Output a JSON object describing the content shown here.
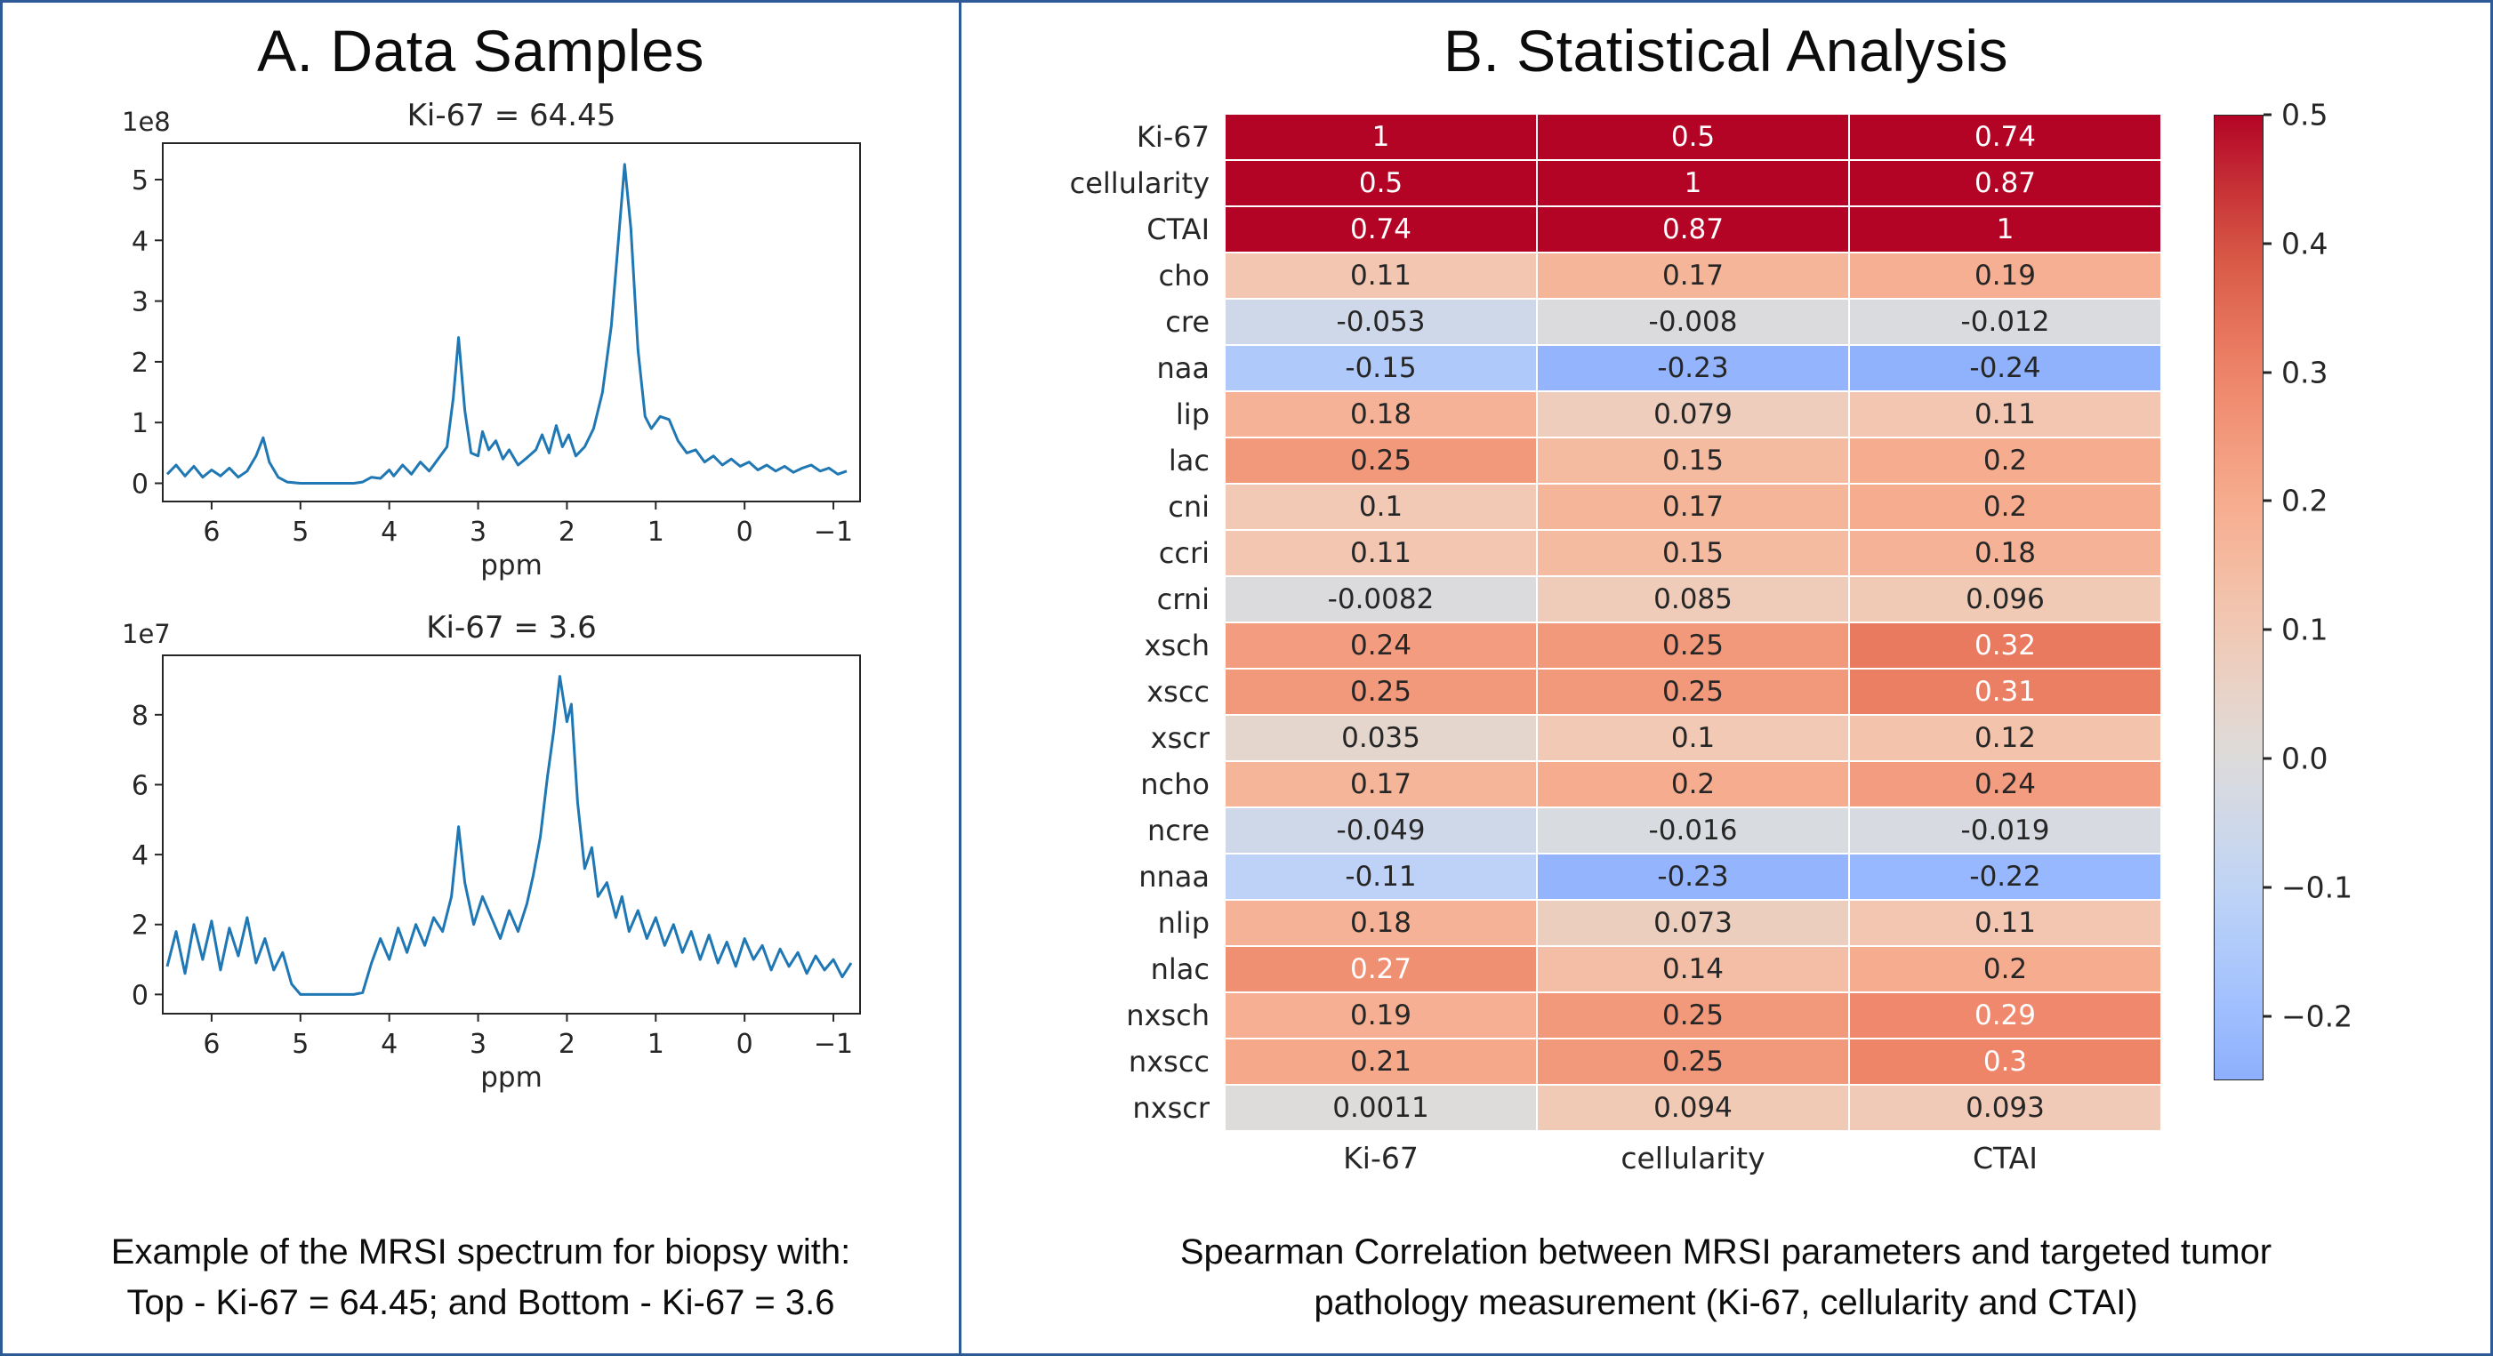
{
  "figure": {
    "border_color": "#2E5B97",
    "panels": {
      "a": {
        "title": "A. Data Samples",
        "caption": [
          "Example of the MRSI spectrum for biopsy with:",
          "Top - Ki-67 = 64.45; and Bottom - Ki-67 = 3.6"
        ]
      },
      "b": {
        "title": "B. Statistical Analysis",
        "caption": [
          "Spearman Correlation between MRSI parameters and targeted tumor",
          "pathology measurement (Ki-67, cellularity and CTAI)"
        ]
      }
    }
  },
  "chart_data": [
    {
      "type": "line",
      "id": "spectrum_top",
      "title": "Ki-67 = 64.45",
      "xlabel": "ppm",
      "y_offset_label": "1e8",
      "line_color": "#1f77b4",
      "xlim": [
        6.55,
        -1.3
      ],
      "ylim": [
        -0.3,
        5.6
      ],
      "x_tick_values": [
        6,
        5,
        4,
        3,
        2,
        1,
        0,
        -1
      ],
      "x_tick_labels": [
        "6",
        "5",
        "4",
        "3",
        "2",
        "1",
        "0",
        "−1"
      ],
      "y_tick_values": [
        0,
        1,
        2,
        3,
        4,
        5
      ],
      "y_tick_labels": [
        "0",
        "1",
        "2",
        "3",
        "4",
        "5"
      ],
      "points": [
        [
          6.5,
          0.15
        ],
        [
          6.4,
          0.3
        ],
        [
          6.3,
          0.12
        ],
        [
          6.2,
          0.28
        ],
        [
          6.1,
          0.1
        ],
        [
          6.0,
          0.22
        ],
        [
          5.9,
          0.12
        ],
        [
          5.8,
          0.25
        ],
        [
          5.7,
          0.1
        ],
        [
          5.6,
          0.2
        ],
        [
          5.5,
          0.45
        ],
        [
          5.42,
          0.75
        ],
        [
          5.35,
          0.35
        ],
        [
          5.25,
          0.1
        ],
        [
          5.15,
          0.02
        ],
        [
          5.0,
          0.0
        ],
        [
          4.8,
          0.0
        ],
        [
          4.6,
          0.0
        ],
        [
          4.4,
          0.0
        ],
        [
          4.3,
          0.02
        ],
        [
          4.2,
          0.1
        ],
        [
          4.1,
          0.08
        ],
        [
          4.0,
          0.22
        ],
        [
          3.95,
          0.12
        ],
        [
          3.85,
          0.3
        ],
        [
          3.75,
          0.15
        ],
        [
          3.65,
          0.35
        ],
        [
          3.55,
          0.2
        ],
        [
          3.45,
          0.4
        ],
        [
          3.35,
          0.6
        ],
        [
          3.28,
          1.4
        ],
        [
          3.22,
          2.4
        ],
        [
          3.15,
          1.2
        ],
        [
          3.08,
          0.5
        ],
        [
          3.0,
          0.45
        ],
        [
          2.95,
          0.85
        ],
        [
          2.88,
          0.55
        ],
        [
          2.8,
          0.7
        ],
        [
          2.72,
          0.4
        ],
        [
          2.65,
          0.55
        ],
        [
          2.55,
          0.3
        ],
        [
          2.45,
          0.42
        ],
        [
          2.35,
          0.55
        ],
        [
          2.28,
          0.8
        ],
        [
          2.2,
          0.5
        ],
        [
          2.12,
          0.95
        ],
        [
          2.05,
          0.6
        ],
        [
          1.98,
          0.8
        ],
        [
          1.9,
          0.45
        ],
        [
          1.8,
          0.6
        ],
        [
          1.7,
          0.9
        ],
        [
          1.6,
          1.5
        ],
        [
          1.5,
          2.6
        ],
        [
          1.42,
          4.0
        ],
        [
          1.35,
          5.25
        ],
        [
          1.28,
          4.2
        ],
        [
          1.2,
          2.2
        ],
        [
          1.12,
          1.1
        ],
        [
          1.05,
          0.9
        ],
        [
          0.95,
          1.1
        ],
        [
          0.85,
          1.05
        ],
        [
          0.75,
          0.7
        ],
        [
          0.65,
          0.5
        ],
        [
          0.55,
          0.55
        ],
        [
          0.45,
          0.35
        ],
        [
          0.35,
          0.45
        ],
        [
          0.25,
          0.3
        ],
        [
          0.15,
          0.4
        ],
        [
          0.05,
          0.28
        ],
        [
          -0.05,
          0.35
        ],
        [
          -0.15,
          0.22
        ],
        [
          -0.25,
          0.3
        ],
        [
          -0.35,
          0.2
        ],
        [
          -0.45,
          0.28
        ],
        [
          -0.55,
          0.18
        ],
        [
          -0.65,
          0.25
        ],
        [
          -0.75,
          0.3
        ],
        [
          -0.85,
          0.2
        ],
        [
          -0.95,
          0.25
        ],
        [
          -1.05,
          0.15
        ],
        [
          -1.15,
          0.2
        ]
      ]
    },
    {
      "type": "line",
      "id": "spectrum_bottom",
      "title": "Ki-67 = 3.6",
      "xlabel": "ppm",
      "y_offset_label": "1e7",
      "line_color": "#1f77b4",
      "xlim": [
        6.55,
        -1.3
      ],
      "ylim": [
        -0.55,
        9.7
      ],
      "x_tick_values": [
        6,
        5,
        4,
        3,
        2,
        1,
        0,
        -1
      ],
      "x_tick_labels": [
        "6",
        "5",
        "4",
        "3",
        "2",
        "1",
        "0",
        "−1"
      ],
      "y_tick_values": [
        0,
        2,
        4,
        6,
        8
      ],
      "y_tick_labels": [
        "0",
        "2",
        "4",
        "6",
        "8"
      ],
      "points": [
        [
          6.5,
          0.8
        ],
        [
          6.4,
          1.8
        ],
        [
          6.3,
          0.6
        ],
        [
          6.2,
          2.0
        ],
        [
          6.1,
          1.0
        ],
        [
          6.0,
          2.1
        ],
        [
          5.9,
          0.7
        ],
        [
          5.8,
          1.9
        ],
        [
          5.7,
          1.1
        ],
        [
          5.6,
          2.2
        ],
        [
          5.5,
          0.9
        ],
        [
          5.4,
          1.6
        ],
        [
          5.3,
          0.7
        ],
        [
          5.2,
          1.2
        ],
        [
          5.1,
          0.3
        ],
        [
          5.0,
          0.0
        ],
        [
          4.8,
          0.0
        ],
        [
          4.6,
          0.0
        ],
        [
          4.4,
          0.0
        ],
        [
          4.3,
          0.05
        ],
        [
          4.2,
          0.9
        ],
        [
          4.1,
          1.6
        ],
        [
          4.0,
          1.0
        ],
        [
          3.9,
          1.9
        ],
        [
          3.8,
          1.2
        ],
        [
          3.7,
          2.0
        ],
        [
          3.6,
          1.4
        ],
        [
          3.5,
          2.2
        ],
        [
          3.4,
          1.8
        ],
        [
          3.3,
          2.8
        ],
        [
          3.22,
          4.8
        ],
        [
          3.15,
          3.2
        ],
        [
          3.05,
          2.0
        ],
        [
          2.95,
          2.8
        ],
        [
          2.85,
          2.2
        ],
        [
          2.75,
          1.6
        ],
        [
          2.65,
          2.4
        ],
        [
          2.55,
          1.8
        ],
        [
          2.45,
          2.6
        ],
        [
          2.38,
          3.4
        ],
        [
          2.3,
          4.5
        ],
        [
          2.22,
          6.2
        ],
        [
          2.15,
          7.5
        ],
        [
          2.08,
          9.1
        ],
        [
          2.0,
          7.8
        ],
        [
          1.95,
          8.3
        ],
        [
          1.88,
          5.5
        ],
        [
          1.8,
          3.6
        ],
        [
          1.72,
          4.2
        ],
        [
          1.65,
          2.8
        ],
        [
          1.55,
          3.2
        ],
        [
          1.45,
          2.2
        ],
        [
          1.38,
          2.8
        ],
        [
          1.3,
          1.8
        ],
        [
          1.2,
          2.4
        ],
        [
          1.1,
          1.6
        ],
        [
          1.0,
          2.2
        ],
        [
          0.9,
          1.4
        ],
        [
          0.8,
          2.0
        ],
        [
          0.7,
          1.2
        ],
        [
          0.6,
          1.8
        ],
        [
          0.5,
          1.0
        ],
        [
          0.4,
          1.7
        ],
        [
          0.3,
          0.9
        ],
        [
          0.2,
          1.5
        ],
        [
          0.1,
          0.8
        ],
        [
          0.0,
          1.6
        ],
        [
          -0.1,
          1.0
        ],
        [
          -0.2,
          1.4
        ],
        [
          -0.3,
          0.7
        ],
        [
          -0.4,
          1.3
        ],
        [
          -0.5,
          0.8
        ],
        [
          -0.6,
          1.2
        ],
        [
          -0.7,
          0.6
        ],
        [
          -0.8,
          1.1
        ],
        [
          -0.9,
          0.7
        ],
        [
          -1.0,
          1.0
        ],
        [
          -1.1,
          0.5
        ],
        [
          -1.2,
          0.9
        ]
      ]
    },
    {
      "type": "heatmap",
      "id": "spearman_correlation",
      "rows": [
        "Ki-67",
        "cellularity",
        "CTAI",
        "cho",
        "cre",
        "naa",
        "lip",
        "lac",
        "cni",
        "ccri",
        "crni",
        "xsch",
        "xscc",
        "xscr",
        "ncho",
        "ncre",
        "nnaa",
        "nlip",
        "nlac",
        "nxsch",
        "nxscc",
        "nxscr"
      ],
      "columns": [
        "Ki-67",
        "cellularity",
        "CTAI"
      ],
      "values": [
        [
          1,
          0.5,
          0.74
        ],
        [
          0.5,
          1,
          0.87
        ],
        [
          0.74,
          0.87,
          1
        ],
        [
          0.11,
          0.17,
          0.19
        ],
        [
          -0.053,
          -0.008,
          -0.012
        ],
        [
          -0.15,
          -0.23,
          -0.24
        ],
        [
          0.18,
          0.079,
          0.11
        ],
        [
          0.25,
          0.15,
          0.2
        ],
        [
          0.1,
          0.17,
          0.2
        ],
        [
          0.11,
          0.15,
          0.18
        ],
        [
          -0.0082,
          0.085,
          0.096
        ],
        [
          0.24,
          0.25,
          0.32
        ],
        [
          0.25,
          0.25,
          0.31
        ],
        [
          0.035,
          0.1,
          0.12
        ],
        [
          0.17,
          0.2,
          0.24
        ],
        [
          -0.049,
          -0.016,
          -0.019
        ],
        [
          -0.11,
          -0.23,
          -0.22
        ],
        [
          0.18,
          0.073,
          0.11
        ],
        [
          0.27,
          0.14,
          0.2
        ],
        [
          0.19,
          0.25,
          0.29
        ],
        [
          0.21,
          0.25,
          0.3
        ],
        [
          0.0011,
          0.094,
          0.093
        ]
      ],
      "cmap": "coolwarm",
      "vmin": -0.5,
      "vmax": 0.5,
      "colormap_stops": [
        "#3B4CC0",
        "#5977E3",
        "#7B9FF9",
        "#9EBEFF",
        "#C0D4F5",
        "#DDDCDB",
        "#F2C9B4",
        "#F6AC8E",
        "#EE8468",
        "#D55342",
        "#B40426"
      ],
      "annot_dark_color": "#262626",
      "annot_light_color": "#FFFFFF",
      "colorbar": {
        "top": 0.5,
        "bottom": -0.25,
        "tick_values": [
          0.5,
          0.4,
          0.3,
          0.2,
          0.1,
          0.0,
          -0.1,
          -0.2
        ],
        "tick_labels": [
          "0.5",
          "0.4",
          "0.3",
          "0.2",
          "0.1",
          "0.0",
          "−0.1",
          "−0.2"
        ]
      }
    }
  ]
}
